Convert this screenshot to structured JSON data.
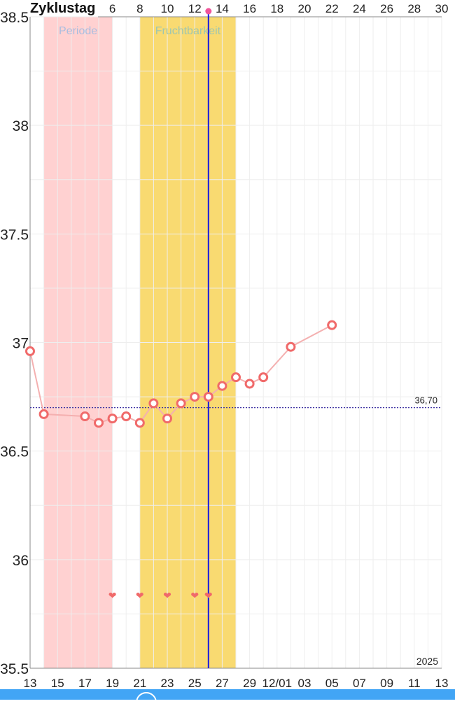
{
  "chart_data": {
    "type": "line",
    "x_axis_start": "2025-11-13",
    "x_tick_labels": [
      "13",
      "15",
      "17",
      "19",
      "21",
      "23",
      "25",
      "27",
      "29",
      "12/01",
      "03",
      "05",
      "07",
      "09",
      "11",
      "13"
    ],
    "year_label": "2025",
    "top_axis_title": "Zyklustag",
    "top_tick_labels": [
      "6",
      "8",
      "10",
      "12",
      "14",
      "16",
      "18",
      "20",
      "22",
      "24",
      "26",
      "28",
      "30"
    ],
    "y_tick_labels": [
      "38.5",
      "38",
      "37.5",
      "37",
      "36.5",
      "36",
      "35.5"
    ],
    "ylim": [
      35.5,
      38.5
    ],
    "xlim": [
      "2025-11-13",
      "2025-12-13"
    ],
    "grid": true,
    "series": [
      {
        "x": [
          "2025-11-13",
          "2025-11-14",
          "2025-11-17",
          "2025-11-18",
          "2025-11-19",
          "2025-11-20",
          "2025-11-21",
          "2025-11-22",
          "2025-11-23",
          "2025-11-24",
          "2025-11-25",
          "2025-11-26",
          "2025-11-27",
          "2025-11-28",
          "2025-11-29",
          "2025-11-30",
          "2025-12-02",
          "2025-12-05"
        ],
        "y": [
          36.96,
          36.67,
          36.66,
          36.63,
          36.65,
          36.66,
          36.63,
          36.72,
          36.65,
          36.72,
          36.75,
          36.75,
          36.8,
          36.84,
          36.81,
          36.84,
          36.98,
          37.08
        ],
        "color": "#f06a6a"
      }
    ],
    "coverline": {
      "value": 36.7,
      "label": "36,70",
      "color": "#3a2fa0"
    },
    "bands": [
      {
        "label": "Periode",
        "from": "2025-11-14",
        "to": "2025-11-19",
        "color": "#ffd1d1",
        "label_color": "#a9bde0"
      },
      {
        "label": "Fruchtbarkeit",
        "from": "2025-11-21",
        "to": "2025-11-28",
        "color": "#f9da71",
        "label_color": "#9ec6b0"
      }
    ],
    "ovulation_marker": {
      "date": "2025-11-26",
      "color": "#1a1adf",
      "dot_color": "#f0559a"
    },
    "heart_dates": [
      "2025-11-19",
      "2025-11-21",
      "2025-11-23",
      "2025-11-25",
      "2025-11-26"
    ],
    "heart_color": "#f06a6a"
  }
}
